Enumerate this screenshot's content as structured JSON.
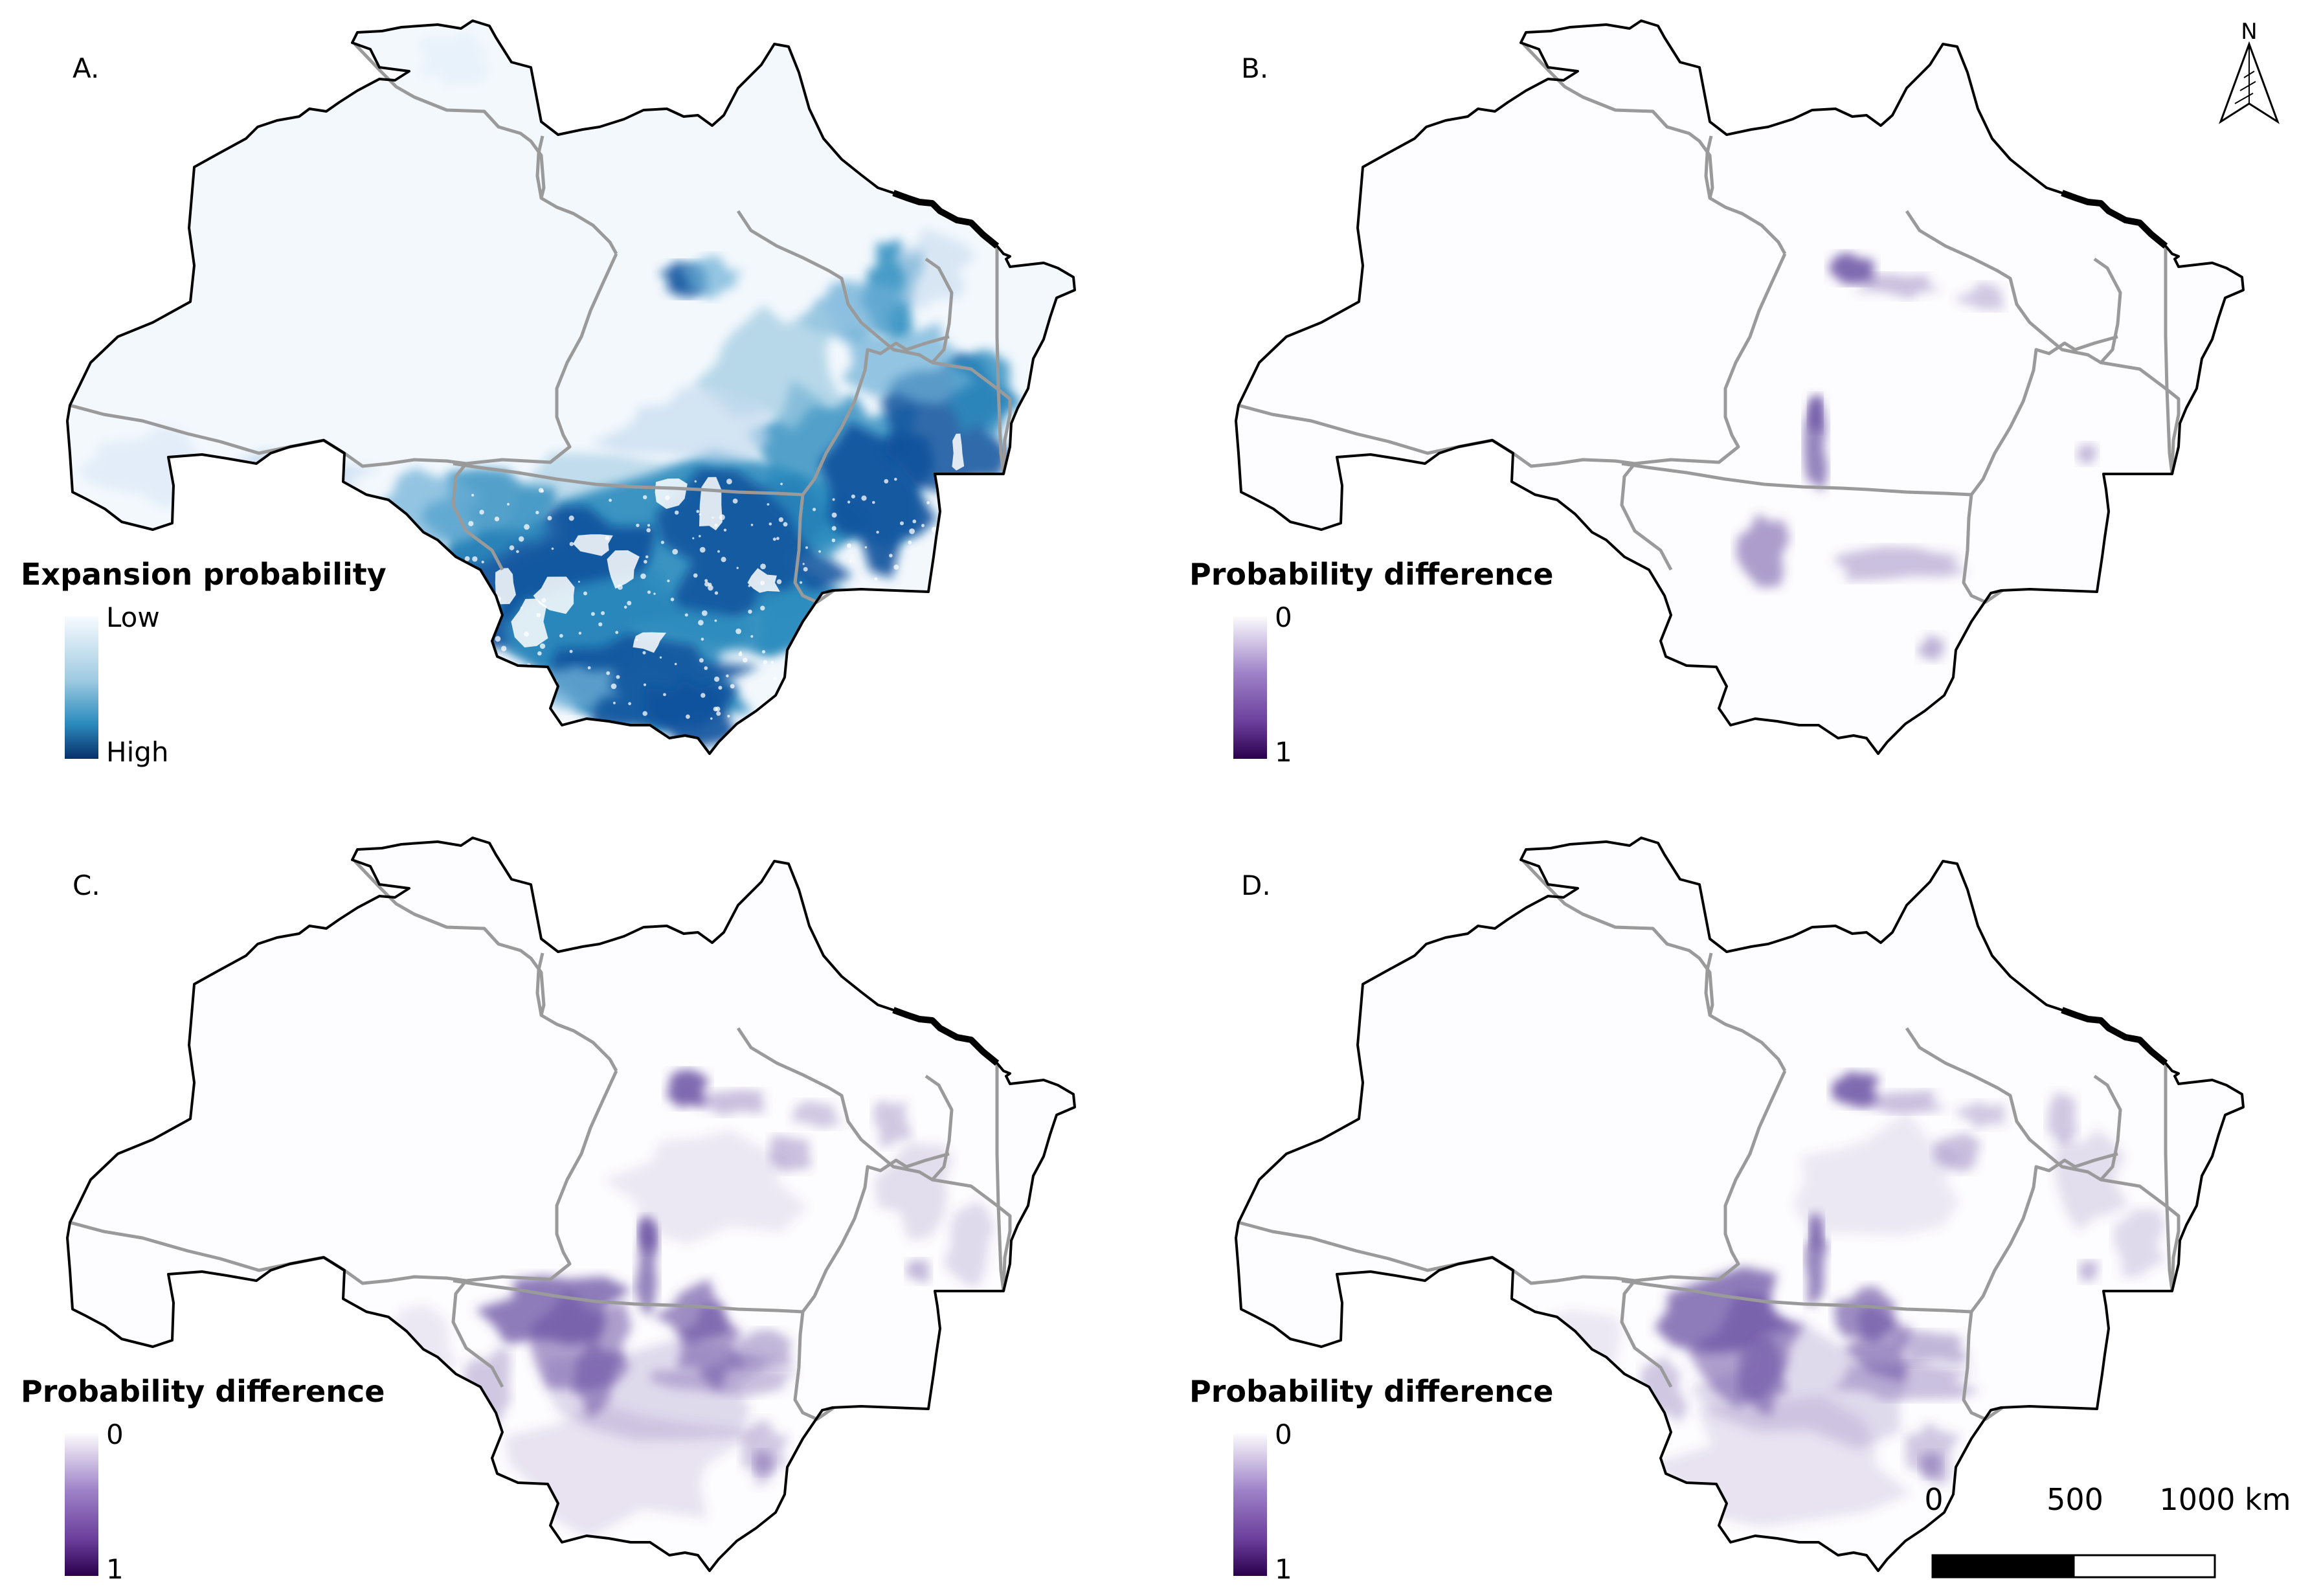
{
  "panels": [
    {
      "letter": "A.",
      "legend_title": "Expansion probability",
      "legend_top": "Low",
      "legend_bottom": "High",
      "ramp": [
        "#f7fbff",
        "#9ecae1",
        "#2b8cbe",
        "#08306b"
      ],
      "intensity": "high"
    },
    {
      "letter": "B.",
      "legend_title": "Probability difference",
      "legend_top": "0",
      "legend_bottom": "1",
      "ramp": [
        "#fcfbfd",
        "#9e82c8",
        "#6a3d9a",
        "#2a004d"
      ],
      "intensity": "low"
    },
    {
      "letter": "C.",
      "legend_title": "Probability difference",
      "legend_top": "0",
      "legend_bottom": "1",
      "ramp": [
        "#fcfbfd",
        "#9e82c8",
        "#6a3d9a",
        "#2a004d"
      ],
      "intensity": "medium"
    },
    {
      "letter": "D.",
      "legend_title": "Probability difference",
      "legend_top": "0",
      "legend_bottom": "1",
      "ramp": [
        "#fcfbfd",
        "#9e82c8",
        "#6a3d9a",
        "#2a004d"
      ],
      "intensity": "medium"
    }
  ],
  "north_arrow": {
    "label": "N"
  },
  "scale_bar": {
    "labels": [
      "0",
      "500",
      "1000 km"
    ]
  },
  "colors": {
    "outer_border": "#000000",
    "state_border": "#9a9a9a",
    "blue_high": "#08519c",
    "purple_high": "#54278f"
  }
}
